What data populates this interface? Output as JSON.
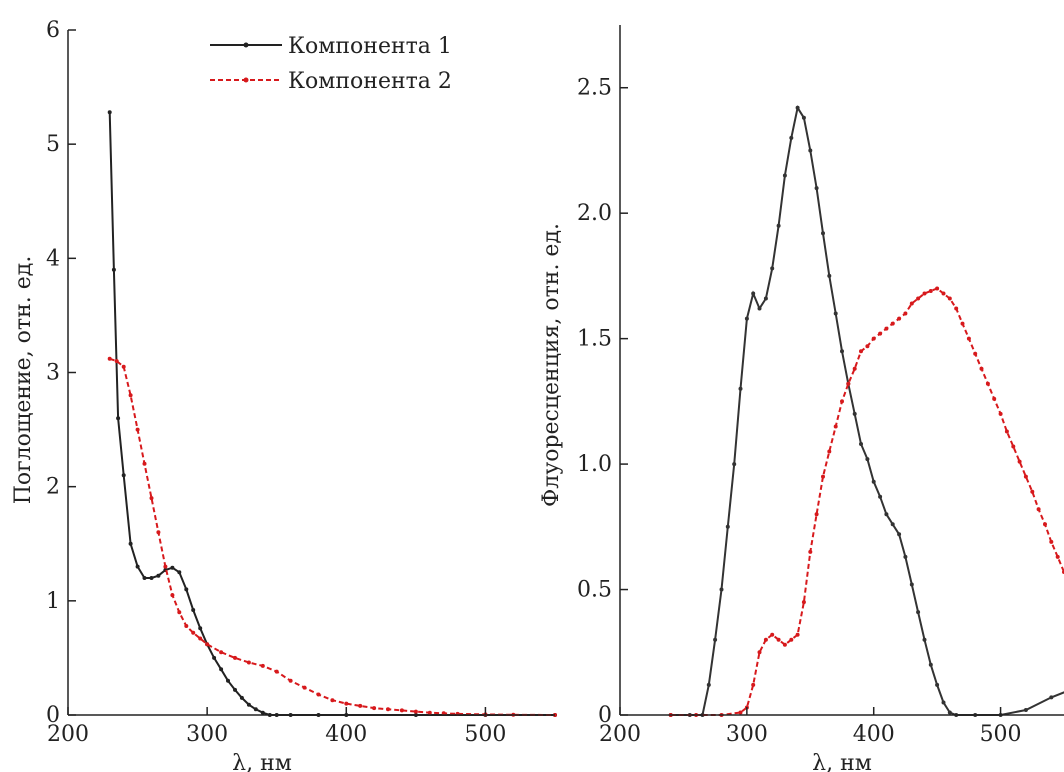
{
  "chart_data": [
    {
      "type": "line",
      "xlabel": "λ, нм",
      "ylabel": "Поглощение, отн. ед.",
      "xlim": [
        200,
        550
      ],
      "ylim": [
        0,
        6
      ],
      "xticks": [
        "200",
        "300",
        "400",
        "500"
      ],
      "yticks": [
        "0",
        "1",
        "2",
        "3",
        "4",
        "5",
        "6"
      ],
      "legend_position": "top-right",
      "grid": false,
      "series": [
        {
          "name": "Компонента 1",
          "color": "#222222",
          "style": "solid",
          "x": [
            230,
            233,
            236,
            240,
            245,
            250,
            255,
            260,
            265,
            270,
            275,
            280,
            285,
            290,
            295,
            300,
            305,
            310,
            315,
            320,
            325,
            330,
            335,
            340,
            345,
            350,
            360,
            380,
            400,
            450,
            500,
            550
          ],
          "y": [
            5.28,
            3.9,
            2.6,
            2.1,
            1.5,
            1.3,
            1.2,
            1.2,
            1.22,
            1.27,
            1.29,
            1.25,
            1.1,
            0.92,
            0.76,
            0.62,
            0.5,
            0.4,
            0.3,
            0.22,
            0.15,
            0.09,
            0.05,
            0.02,
            0.0,
            0.0,
            0.0,
            0.0,
            0.0,
            0.0,
            0.0,
            0.0
          ]
        },
        {
          "name": "Компонента 2",
          "color": "#d7191c",
          "style": "dashed",
          "x": [
            230,
            235,
            240,
            245,
            250,
            255,
            260,
            265,
            270,
            275,
            280,
            285,
            290,
            295,
            300,
            310,
            320,
            330,
            340,
            350,
            360,
            370,
            380,
            390,
            400,
            410,
            420,
            430,
            440,
            450,
            460,
            470,
            480,
            500,
            520,
            550
          ],
          "y": [
            3.12,
            3.1,
            3.05,
            2.8,
            2.5,
            2.2,
            1.9,
            1.6,
            1.3,
            1.05,
            0.9,
            0.78,
            0.72,
            0.67,
            0.62,
            0.55,
            0.5,
            0.46,
            0.43,
            0.38,
            0.3,
            0.24,
            0.18,
            0.13,
            0.1,
            0.08,
            0.06,
            0.05,
            0.04,
            0.03,
            0.02,
            0.015,
            0.01,
            0.005,
            0.002,
            0.0
          ]
        }
      ]
    },
    {
      "type": "line",
      "xlabel": "λ, нм",
      "ylabel": "Флуоресценция, отн. ед.",
      "xlim": [
        200,
        550
      ],
      "ylim": [
        0,
        2.75
      ],
      "xticks": [
        "200",
        "300",
        "400",
        "500"
      ],
      "yticks": [
        "0",
        "0.5",
        "1.0",
        "1.5",
        "2.0",
        "2.5"
      ],
      "grid": false,
      "series": [
        {
          "name": "Компонента 1",
          "color": "#333333",
          "style": "solid",
          "x": [
            240,
            255,
            265,
            270,
            275,
            280,
            285,
            290,
            295,
            300,
            305,
            310,
            315,
            320,
            325,
            330,
            335,
            340,
            345,
            350,
            355,
            360,
            365,
            370,
            375,
            380,
            385,
            390,
            395,
            400,
            405,
            410,
            415,
            420,
            425,
            430,
            435,
            440,
            445,
            450,
            455,
            460,
            465,
            480,
            500,
            520,
            540,
            555
          ],
          "y": [
            0,
            0,
            0,
            0.12,
            0.3,
            0.5,
            0.75,
            1.0,
            1.3,
            1.58,
            1.68,
            1.62,
            1.66,
            1.78,
            1.95,
            2.15,
            2.3,
            2.42,
            2.38,
            2.25,
            2.1,
            1.92,
            1.75,
            1.6,
            1.45,
            1.32,
            1.2,
            1.08,
            1.02,
            0.93,
            0.87,
            0.8,
            0.76,
            0.72,
            0.63,
            0.52,
            0.41,
            0.3,
            0.2,
            0.12,
            0.05,
            0.01,
            0,
            0,
            0,
            0.02,
            0.07,
            0.1
          ]
        },
        {
          "name": "Компонента 2",
          "color": "#d7191c",
          "style": "dashed",
          "x": [
            240,
            260,
            280,
            295,
            300,
            305,
            310,
            315,
            320,
            325,
            330,
            335,
            340,
            345,
            350,
            355,
            360,
            365,
            370,
            375,
            380,
            385,
            390,
            395,
            400,
            405,
            410,
            415,
            420,
            425,
            430,
            435,
            440,
            445,
            450,
            455,
            460,
            465,
            470,
            475,
            480,
            485,
            490,
            495,
            500,
            505,
            510,
            515,
            520,
            525,
            530,
            535,
            540,
            545,
            550
          ],
          "y": [
            0,
            0,
            0,
            0.01,
            0.03,
            0.12,
            0.25,
            0.3,
            0.32,
            0.3,
            0.28,
            0.3,
            0.32,
            0.45,
            0.65,
            0.8,
            0.95,
            1.05,
            1.15,
            1.25,
            1.32,
            1.38,
            1.45,
            1.47,
            1.5,
            1.52,
            1.54,
            1.56,
            1.58,
            1.6,
            1.64,
            1.66,
            1.68,
            1.69,
            1.7,
            1.68,
            1.66,
            1.62,
            1.56,
            1.5,
            1.44,
            1.38,
            1.32,
            1.26,
            1.2,
            1.13,
            1.07,
            1.01,
            0.95,
            0.89,
            0.82,
            0.76,
            0.69,
            0.63,
            0.57
          ]
        }
      ]
    }
  ]
}
